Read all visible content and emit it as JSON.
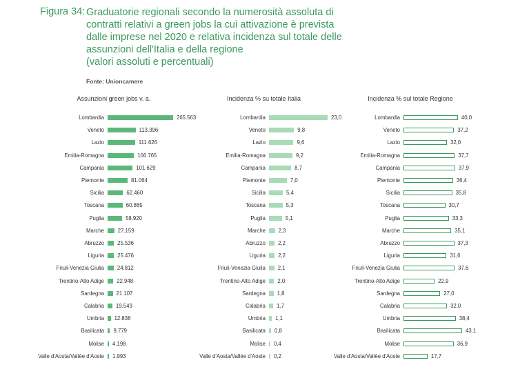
{
  "figure_label": "Figura 34:",
  "title_lines": [
    "Graduatorie regionali secondo la numerosità assoluta di",
    "contratti relativi a green jobs la cui attivazione è prevista",
    "dalle imprese nel 2020 e relativa incidenza sul totale delle",
    "assunzioni dell'Italia e della regione",
    "(valori assoluti e percentuali)"
  ],
  "source": "Fonte: Unioncamere",
  "colors": {
    "title": "#3a9a5c",
    "bar_solid": "#5cb87a",
    "bar_light": "#a8dbb6",
    "bar_outline": "#3a9a5c"
  },
  "chart_data": [
    {
      "type": "bar",
      "orientation": "horizontal",
      "title": "Assunzioni green jobs v. a.",
      "categories": [
        "Lombardia",
        "Veneto",
        "Lazio",
        "Emilia-Romagna",
        "Campania",
        "Piemonte",
        "Sicilia",
        "Toscana",
        "Puglia",
        "Marche",
        "Abruzzo",
        "Liguria",
        "Friuli-Venezia Giulia",
        "Trentino-Alto Adige",
        "Sardegna",
        "Calabria",
        "Umbria",
        "Basilicata",
        "Molise",
        "Valle d'Aosta/Vallée d'Aoste"
      ],
      "values": [
        265563,
        113396,
        111626,
        106765,
        101629,
        81064,
        62460,
        60865,
        58920,
        27159,
        25536,
        25476,
        24812,
        22948,
        21107,
        19549,
        12838,
        9779,
        4198,
        1993
      ],
      "labels": [
        "265.563",
        "113.396",
        "111.626",
        "106.765",
        "101.629",
        "81.064",
        "62.460",
        "60.865",
        "58.920",
        "27.159",
        "25.536",
        "25.476",
        "24.812",
        "22.948",
        "21.107",
        "19.549",
        "12.838",
        "9.779",
        "4.198",
        "1.993"
      ],
      "style": "solid"
    },
    {
      "type": "bar",
      "orientation": "horizontal",
      "title": "Incidenza % su totale Italia",
      "categories": [
        "Lombardia",
        "Veneto",
        "Lazio",
        "Emilia-Romagna",
        "Campania",
        "Piemonte",
        "Sicilia",
        "Toscana",
        "Puglia",
        "Marche",
        "Abruzzo",
        "Liguria",
        "Friuli-Venezia Giulia",
        "Trentino-Alto Adige",
        "Sardegna",
        "Calabria",
        "Umbria",
        "Basilicata",
        "Molise",
        "Valle d'Aosta/Vallée d'Aoste"
      ],
      "values": [
        23.0,
        9.8,
        9.6,
        9.2,
        8.7,
        7.0,
        5.4,
        5.3,
        5.1,
        2.3,
        2.2,
        2.2,
        2.1,
        2.0,
        1.8,
        1.7,
        1.1,
        0.8,
        0.4,
        0.2
      ],
      "labels": [
        "23,0",
        "9,8",
        "9,6",
        "9,2",
        "8,7",
        "7,0",
        "5,4",
        "5,3",
        "5,1",
        "2,3",
        "2,2",
        "2,2",
        "2,1",
        "2,0",
        "1,8",
        "1,7",
        "1,1",
        "0,8",
        "0,4",
        "0,2"
      ],
      "style": "light"
    },
    {
      "type": "bar",
      "orientation": "horizontal",
      "title": "Incidenza % sul totale Regione",
      "categories": [
        "Lombardia",
        "Veneto",
        "Lazio",
        "Emilia-Romagna",
        "Campania",
        "Piemonte",
        "Sicilia",
        "Toscana",
        "Puglia",
        "Marche",
        "Abruzzo",
        "Liguria",
        "Friuli-Venezia Giulia",
        "Trentino-Alto Adige",
        "Sardegna",
        "Calabria",
        "Umbria",
        "Basilicata",
        "Molise",
        "Valle d'Aosta/Vallée d'Aoste"
      ],
      "values": [
        40.0,
        37.2,
        32.0,
        37.7,
        37.9,
        36.4,
        35.8,
        30.7,
        33.3,
        35.1,
        37.3,
        31.6,
        37.6,
        22.9,
        27.0,
        32.0,
        38.4,
        43.1,
        36.9,
        17.7
      ],
      "labels": [
        "40,0",
        "37,2",
        "32,0",
        "37,7",
        "37,9",
        "36,4",
        "35,8",
        "30,7",
        "33,3",
        "35,1",
        "37,3",
        "31,6",
        "37,6",
        "22,9",
        "27,0",
        "32,0",
        "38,4",
        "43,1",
        "36,9",
        "17,7"
      ],
      "style": "outline"
    }
  ]
}
